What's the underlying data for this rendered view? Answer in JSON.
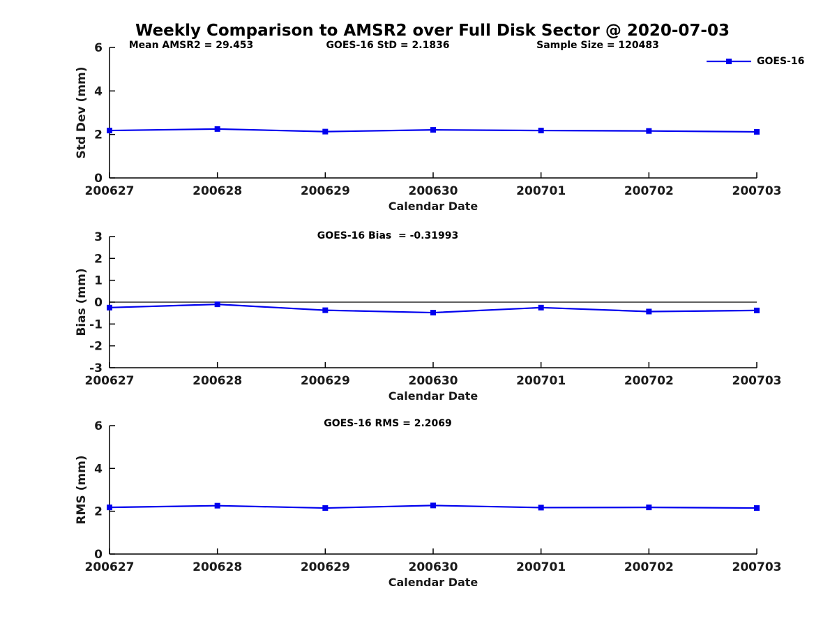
{
  "figure": {
    "title": "Weekly Comparison to AMSR2 over Full Disk Sector @ 2020-07-03",
    "legend": {
      "label": "GOES-16",
      "position": "top-right"
    },
    "colors": {
      "series": "#0000EE",
      "axis": "#000000",
      "tick_text": "#1a1a1a",
      "background": "#ffffff"
    }
  },
  "chart_data": [
    {
      "type": "line",
      "id": "std-dev",
      "annotations": [
        "Mean AMSR2 = 29.453",
        "GOES-16 StD = 2.1836",
        "Sample Size = 120483"
      ],
      "categories": [
        "200627",
        "200628",
        "200629",
        "200630",
        "200701",
        "200702",
        "200703"
      ],
      "series": [
        {
          "name": "GOES-16",
          "marker": "square",
          "values": [
            2.18,
            2.25,
            2.13,
            2.21,
            2.18,
            2.16,
            2.12
          ]
        }
      ],
      "xlabel": "Calendar Date",
      "ylabel": "Std Dev (mm)",
      "ylim": [
        0,
        6
      ],
      "yticks": [
        0,
        2,
        4,
        6
      ],
      "zero_line": false,
      "grid": false,
      "legend_visible": true
    },
    {
      "type": "line",
      "id": "bias",
      "annotations": [
        "GOES-16 Bias  = -0.31993"
      ],
      "categories": [
        "200627",
        "200628",
        "200629",
        "200630",
        "200701",
        "200702",
        "200703"
      ],
      "series": [
        {
          "name": "GOES-16",
          "marker": "square",
          "values": [
            -0.25,
            -0.1,
            -0.37,
            -0.48,
            -0.25,
            -0.43,
            -0.38
          ]
        }
      ],
      "xlabel": "Calendar Date",
      "ylabel": "Bias (mm)",
      "ylim": [
        -3,
        3
      ],
      "yticks": [
        -3,
        -2,
        -1,
        0,
        1,
        2,
        3
      ],
      "zero_line": true,
      "grid": false,
      "legend_visible": false
    },
    {
      "type": "line",
      "id": "rms",
      "annotations": [
        "GOES-16 RMS = 2.2069"
      ],
      "categories": [
        "200627",
        "200628",
        "200629",
        "200630",
        "200701",
        "200702",
        "200703"
      ],
      "series": [
        {
          "name": "GOES-16",
          "marker": "square",
          "values": [
            2.18,
            2.26,
            2.15,
            2.27,
            2.17,
            2.18,
            2.15
          ]
        }
      ],
      "xlabel": "Calendar Date",
      "ylabel": "RMS (mm)",
      "ylim": [
        0,
        6
      ],
      "yticks": [
        0,
        2,
        4,
        6
      ],
      "zero_line": false,
      "grid": false,
      "legend_visible": false
    }
  ]
}
